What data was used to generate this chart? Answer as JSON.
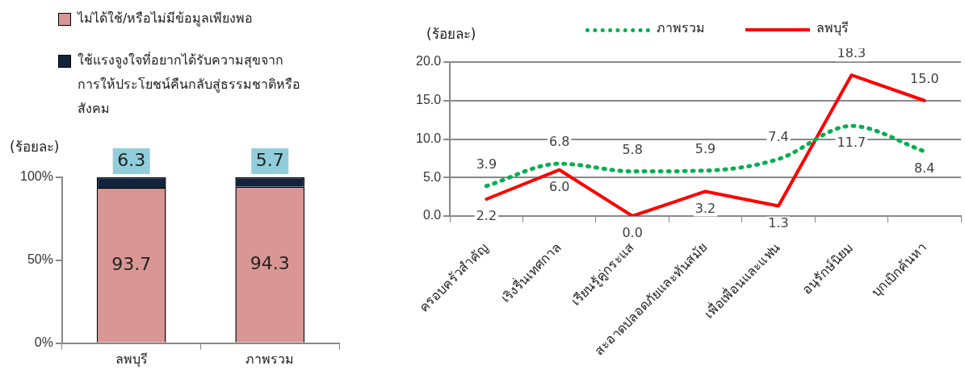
{
  "chart_data": [
    {
      "type": "bar",
      "stacked": true,
      "ylabel": "(ร้อยละ)",
      "categories": [
        "ลพบุรี",
        "ภาพรวม"
      ],
      "series": [
        {
          "name": "ไม่ได้ใช้/หรือไม่มีข้อมูลเพียงพอ",
          "color": "#d99694",
          "values": [
            93.7,
            94.3
          ]
        },
        {
          "name": "ใช้แรงจูงใจที่อยากได้รับความสุขจากการให้ประโยชน์คืนกลับสู่ธรรมชาติหรือสังคม",
          "color": "#10243e",
          "values": [
            6.3,
            5.7
          ]
        }
      ],
      "ylim": [
        0,
        100
      ],
      "yticks": [
        {
          "value": 0,
          "label": "0%"
        },
        {
          "value": 50,
          "label": "50%"
        },
        {
          "value": 100,
          "label": "100%"
        }
      ],
      "data_labels": true,
      "legend": "top",
      "grid": false
    },
    {
      "type": "line",
      "ylabel": "(ร้อยละ)",
      "categories": [
        "ครอบครัวสำคัญ",
        "เริงรื่นเทศกาล",
        "เรียนรู้คู่กระแส",
        "สะอาดปลอดภัยและทันสมัย",
        "เพื่อเพื่อนและแฟน",
        "อนุรักษ์นิยม",
        "บุกเบิกค้นหา"
      ],
      "series": [
        {
          "name": "ภาพรวม",
          "color": "#00b050",
          "line_style": "dotted",
          "values": [
            3.9,
            6.8,
            5.8,
            5.9,
            7.4,
            11.7,
            8.4
          ],
          "value_labels": [
            "3.9",
            "6.8",
            "5.8",
            "5.9",
            "7.4",
            "11.7",
            "8.4"
          ]
        },
        {
          "name": "ลพบุรี",
          "color": "#ff0000",
          "line_style": "solid",
          "values": [
            2.2,
            6.0,
            0.0,
            3.2,
            1.3,
            18.3,
            15.0
          ],
          "value_labels": [
            "2.2",
            "6.0",
            "0.0",
            "3.2",
            "1.3",
            "18.3",
            "15.0"
          ]
        }
      ],
      "ylim": [
        0,
        20
      ],
      "yticks": [
        {
          "value": 0,
          "label": "0.0"
        },
        {
          "value": 5,
          "label": "5.0"
        },
        {
          "value": 10,
          "label": "10.0"
        },
        {
          "value": 15,
          "label": "15.0"
        },
        {
          "value": 20,
          "label": "20.0"
        }
      ],
      "legend": "top",
      "grid": "y",
      "marker": "none"
    }
  ]
}
